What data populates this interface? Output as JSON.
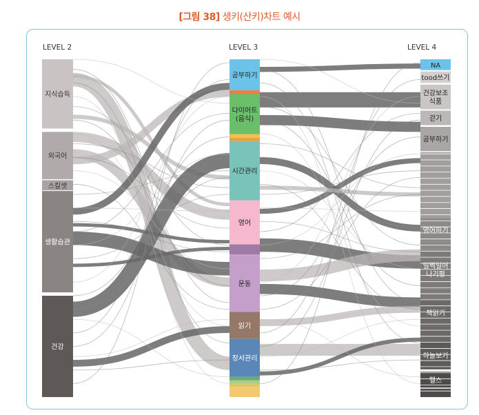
{
  "figure": {
    "title_num": "[그림 38]",
    "title_text": " 생키(산키)차트 예시"
  },
  "levels": {
    "l2": "LEVEL 2",
    "l3": "LEVEL 3",
    "l4": "LEVEL 4"
  },
  "colors": {
    "frame": "#7ec8d8",
    "title": "#e05a2a",
    "flow_dark": "#666666",
    "flow_light": "#bdb8b8"
  },
  "chart_data": {
    "type": "sankey",
    "level2_nodes": [
      {
        "label": "지식습득",
        "start": 0.0,
        "end": 0.205,
        "color": "#c9c4c3"
      },
      {
        "label": "외국어",
        "start": 0.215,
        "end": 0.355,
        "color": "#b0abaa"
      },
      {
        "label": "스킬셋",
        "start": 0.358,
        "end": 0.388,
        "color": "#a8a3a2"
      },
      {
        "label": "생활습관",
        "start": 0.39,
        "end": 0.69,
        "color": "#8a8483"
      },
      {
        "label": "건강",
        "start": 0.7,
        "end": 1.0,
        "color": "#5e5857"
      }
    ],
    "level3_nodes": [
      {
        "label": "공부하기",
        "start": 0.0,
        "end": 0.092,
        "color": "#6cc3ea"
      },
      {
        "label": "",
        "start": 0.092,
        "end": 0.103,
        "color": "#f07d3a"
      },
      {
        "label": "다이어트\n(음식)",
        "start": 0.103,
        "end": 0.222,
        "color": "#6bbf6a"
      },
      {
        "label": "",
        "start": 0.222,
        "end": 0.232,
        "color": "#f2c14a"
      },
      {
        "label": "",
        "start": 0.232,
        "end": 0.242,
        "color": "#e8a33c"
      },
      {
        "label": "시간관리",
        "start": 0.242,
        "end": 0.418,
        "color": "#7ac3bb"
      },
      {
        "label": "영어",
        "start": 0.418,
        "end": 0.548,
        "color": "#f5b8cf"
      },
      {
        "label": "",
        "start": 0.548,
        "end": 0.578,
        "color": "#9d7ba6"
      },
      {
        "label": "운동",
        "start": 0.578,
        "end": 0.748,
        "color": "#c49fca"
      },
      {
        "label": "읽기",
        "start": 0.748,
        "end": 0.828,
        "color": "#957867"
      },
      {
        "label": "정서관리",
        "start": 0.828,
        "end": 0.94,
        "color": "#5a86b8"
      },
      {
        "label": "",
        "start": 0.94,
        "end": 0.95,
        "color": "#6aae6a"
      },
      {
        "label": "",
        "start": 0.95,
        "end": 0.96,
        "color": "#aacb8a"
      },
      {
        "label": "",
        "start": 0.96,
        "end": 0.97,
        "color": "#d9c76c"
      },
      {
        "label": "",
        "start": 0.97,
        "end": 1.0,
        "color": "#f2c96e"
      }
    ],
    "level4_nodes": [
      {
        "label": "NA",
        "start": 0.0,
        "end": 0.032,
        "color": "#6cc3ea"
      },
      {
        "label": "tood쓰기",
        "start": 0.036,
        "end": 0.07,
        "color": "#d2cfce"
      },
      {
        "label": "건강보조\n식품",
        "start": 0.075,
        "end": 0.148,
        "color": "#c9c6c5"
      },
      {
        "label": "걷기",
        "start": 0.152,
        "end": 0.195,
        "color": "#bcb8b7"
      },
      {
        "label": "공부하기",
        "start": 0.2,
        "end": 0.272,
        "color": "#aaa6a5"
      },
      {
        "label": "",
        "start": 0.275,
        "end": 0.47,
        "color": "#a29e9d"
      },
      {
        "label": "영어하기",
        "start": 0.47,
        "end": 0.54,
        "color": "#8d8988"
      },
      {
        "label": "",
        "start": 0.54,
        "end": 0.565,
        "color": "#8d8988"
      },
      {
        "label": "일찍일어\n나기평",
        "start": 0.565,
        "end": 0.68,
        "color": "#7e7a79"
      },
      {
        "label": "",
        "start": 0.68,
        "end": 0.71,
        "color": "#7e7a79"
      },
      {
        "label": "책읽기",
        "start": 0.71,
        "end": 0.79,
        "color": "#6d6968"
      },
      {
        "label": "",
        "start": 0.79,
        "end": 0.835,
        "color": "#6d6968"
      },
      {
        "label": "하늘보기",
        "start": 0.835,
        "end": 0.918,
        "color": "#5e5a59"
      },
      {
        "label": "헬스",
        "start": 0.925,
        "end": 0.972,
        "color": "#4f4b4a"
      },
      {
        "label": "",
        "start": 0.975,
        "end": 1.0,
        "color": "#4f4b4a"
      }
    ],
    "flows_2_3": [
      {
        "from": 0.3,
        "to": 0.1,
        "w": 0.022,
        "shade": "light"
      },
      {
        "from": 0.17,
        "to": 0.35,
        "w": 0.012,
        "shade": "light"
      },
      {
        "from": 0.05,
        "to": 0.43,
        "w": 0.01,
        "shade": "light"
      },
      {
        "from": 0.23,
        "to": 0.46,
        "w": 0.03,
        "shade": "light"
      },
      {
        "from": 0.28,
        "to": 0.66,
        "w": 0.028,
        "shade": "light"
      },
      {
        "from": 0.06,
        "to": 0.9,
        "w": 0.04,
        "shade": "light"
      },
      {
        "from": 0.53,
        "to": 0.62,
        "w": 0.04,
        "shade": "dark"
      },
      {
        "from": 0.45,
        "to": 0.08,
        "w": 0.02,
        "shade": "dark"
      },
      {
        "from": 0.49,
        "to": 0.54,
        "w": 0.01,
        "shade": "dark"
      },
      {
        "from": 0.61,
        "to": 0.56,
        "w": 0.01,
        "shade": "dark"
      },
      {
        "from": 0.74,
        "to": 0.3,
        "w": 0.045,
        "shade": "dark"
      },
      {
        "from": 0.9,
        "to": 0.8,
        "w": 0.02,
        "shade": "dark"
      }
    ],
    "flows_3_4": [
      {
        "from": 0.12,
        "to": 0.12,
        "w": 0.045,
        "shade": "dark"
      },
      {
        "from": 0.18,
        "to": 0.2,
        "w": 0.03,
        "shade": "dark"
      },
      {
        "from": 0.03,
        "to": 0.02,
        "w": 0.015,
        "shade": "dark"
      },
      {
        "from": 0.3,
        "to": 0.5,
        "w": 0.02,
        "shade": "dark"
      },
      {
        "from": 0.45,
        "to": 0.3,
        "w": 0.015,
        "shade": "dark"
      },
      {
        "from": 0.55,
        "to": 0.6,
        "w": 0.04,
        "shade": "dark"
      },
      {
        "from": 0.68,
        "to": 0.72,
        "w": 0.03,
        "shade": "dark"
      },
      {
        "from": 0.64,
        "to": 0.58,
        "w": 0.035,
        "shade": "light"
      },
      {
        "from": 0.78,
        "to": 0.74,
        "w": 0.02,
        "shade": "light"
      },
      {
        "from": 0.86,
        "to": 0.86,
        "w": 0.035,
        "shade": "light"
      },
      {
        "from": 0.93,
        "to": 0.83,
        "w": 0.012,
        "shade": "dark"
      },
      {
        "from": 0.38,
        "to": 0.4,
        "w": 0.012,
        "shade": "light"
      }
    ]
  }
}
